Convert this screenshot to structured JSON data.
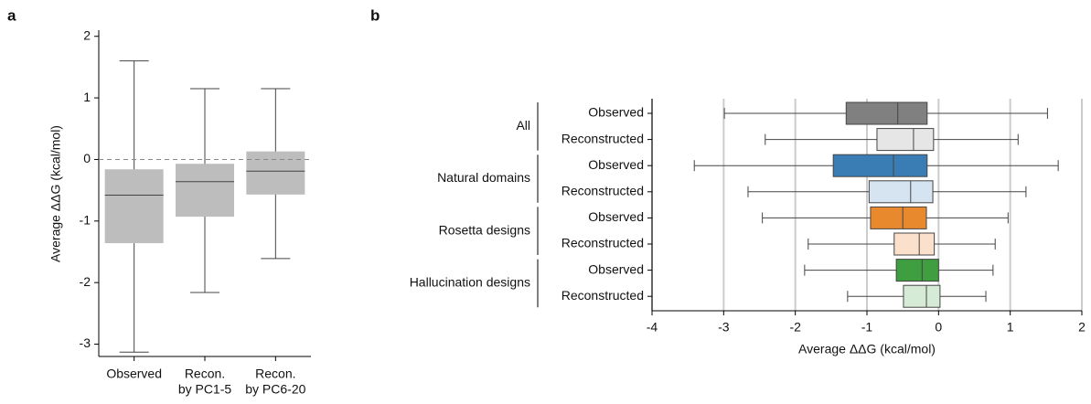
{
  "chart_data": [
    {
      "type": "box",
      "orientation": "vertical",
      "panel_label": "a",
      "ylabel": "Average ΔΔG (kcal/mol)",
      "categories": [
        [
          "Observed"
        ],
        [
          "Recon.",
          "by PC1-5"
        ],
        [
          "Recon.",
          "by PC6-20"
        ]
      ],
      "color": "#bdbdbd",
      "ylim": [
        -3.2,
        2.1
      ],
      "yticks": [
        -3,
        -2,
        -1,
        0,
        1,
        2
      ],
      "hline": 0,
      "boxes": [
        {
          "whislo": -3.13,
          "q1": -1.36,
          "med": -0.58,
          "q3": -0.16,
          "whishi": 1.6
        },
        {
          "whislo": -2.16,
          "q1": -0.93,
          "med": -0.36,
          "q3": -0.07,
          "whishi": 1.15
        },
        {
          "whislo": -1.61,
          "q1": -0.57,
          "med": -0.19,
          "q3": 0.13,
          "whishi": 1.15
        }
      ]
    },
    {
      "type": "box",
      "orientation": "horizontal",
      "panel_label": "b",
      "xlabel": "Average ΔΔG (kcal/mol)",
      "xlim": [
        -4,
        2
      ],
      "xticks": [
        -4,
        -3,
        -2,
        -1,
        0,
        1,
        2
      ],
      "grid": true,
      "groups": [
        {
          "name": "All",
          "boxes": [
            {
              "name": "Observed",
              "color": "#808080",
              "whislo": -2.99,
              "q1": -1.29,
              "med": -0.57,
              "q3": -0.16,
              "whishi": 1.52
            },
            {
              "name": "Reconstructed",
              "color": "#e6e6e6",
              "whislo": -2.42,
              "q1": -0.86,
              "med": -0.35,
              "q3": -0.07,
              "whishi": 1.11
            }
          ]
        },
        {
          "name": "Natural domains",
          "boxes": [
            {
              "name": "Observed",
              "color": "#3a7db5",
              "whislo": -3.41,
              "q1": -1.47,
              "med": -0.63,
              "q3": -0.16,
              "whishi": 1.67
            },
            {
              "name": "Reconstructed",
              "color": "#d5e4f0",
              "whislo": -2.66,
              "q1": -0.97,
              "med": -0.39,
              "q3": -0.08,
              "whishi": 1.22
            }
          ]
        },
        {
          "name": "Rosetta designs",
          "boxes": [
            {
              "name": "Observed",
              "color": "#e8892e",
              "whislo": -2.46,
              "q1": -0.95,
              "med": -0.5,
              "q3": -0.17,
              "whishi": 0.97
            },
            {
              "name": "Reconstructed",
              "color": "#fbe0cc",
              "whislo": -1.82,
              "q1": -0.62,
              "med": -0.27,
              "q3": -0.06,
              "whishi": 0.79
            }
          ]
        },
        {
          "name": "Hallucination designs",
          "boxes": [
            {
              "name": "Observed",
              "color": "#3f9e3f",
              "whislo": -1.87,
              "q1": -0.59,
              "med": -0.23,
              "q3": 0.0,
              "whishi": 0.76
            },
            {
              "name": "Reconstructed",
              "color": "#d6ebd6",
              "whislo": -1.27,
              "q1": -0.49,
              "med": -0.17,
              "q3": 0.02,
              "whishi": 0.66
            }
          ]
        }
      ]
    }
  ]
}
